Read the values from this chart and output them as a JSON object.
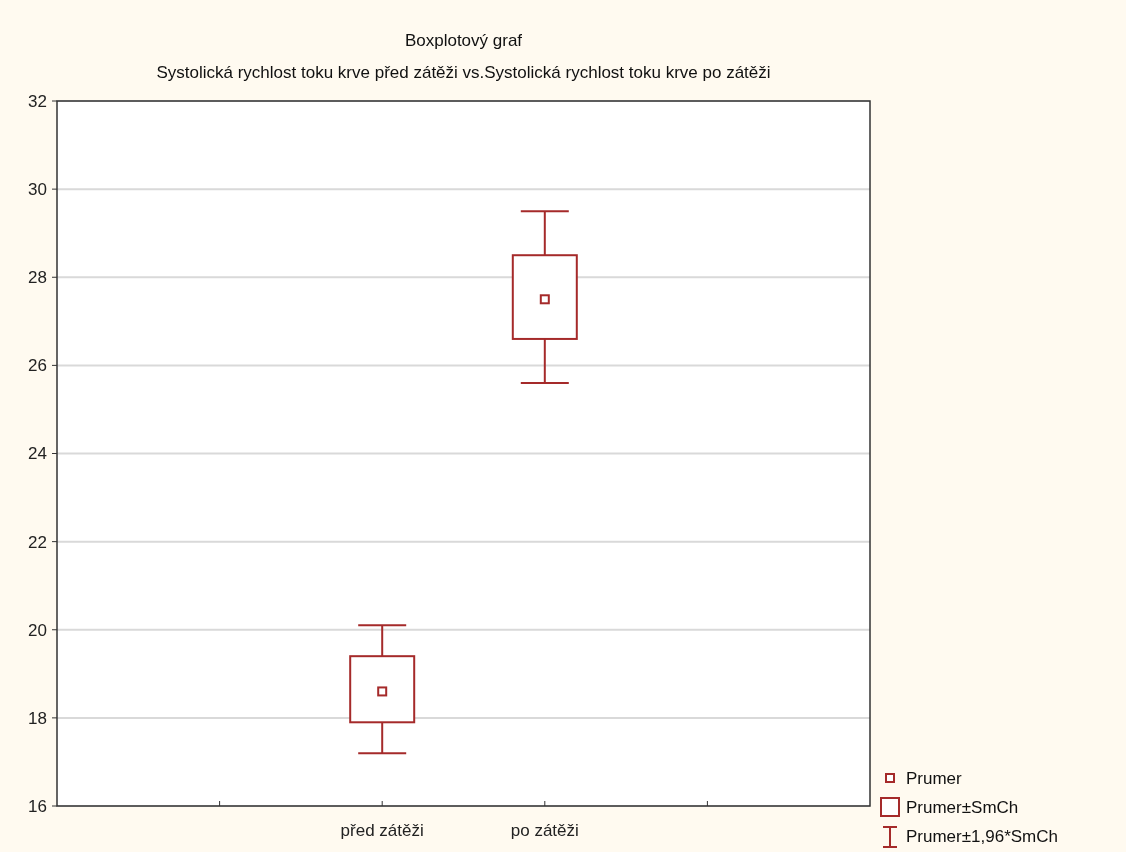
{
  "chart_data": {
    "type": "box",
    "title": "Boxplotový graf",
    "subtitle": "Systolická rychlost toku krve před zátěži vs.Systolická rychlost toku krve po zátěži",
    "categories": [
      null,
      "před zátěži",
      "po zátěži",
      null
    ],
    "color": "#a52a2a",
    "boxes": [
      null,
      {
        "low": 17.2,
        "q1": 17.9,
        "q3": 19.4,
        "high": 20.1,
        "mean": 18.6
      },
      {
        "low": 25.6,
        "q1": 26.6,
        "q3": 28.5,
        "high": 29.5,
        "mean": 27.5
      },
      null
    ],
    "ylim": [
      16,
      32
    ],
    "yticks": [
      16,
      18,
      20,
      22,
      24,
      26,
      28,
      30,
      32
    ],
    "grid": "y",
    "annotations": [
      "Prumer",
      "Prumer±SmCh",
      "Prumer±1,96*SmCh"
    ]
  }
}
